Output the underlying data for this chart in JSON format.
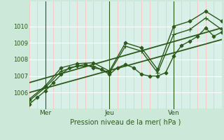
{
  "bg_color": "#cce8d8",
  "plot_bg_color": "#d8f0e8",
  "grid_color_major": "#ffffff",
  "grid_color_minor": "#ffbbbb",
  "line_color": "#2d5a1b",
  "xlabel": "Pression niveau de la mer( hPa )",
  "xlim": [
    0,
    72
  ],
  "ylim": [
    1005.0,
    1011.5
  ],
  "yticks": [
    1006,
    1007,
    1008,
    1009,
    1010
  ],
  "day_ticks": [
    6,
    30,
    54
  ],
  "day_labels": [
    "Mer",
    "Jeu",
    "Ven"
  ],
  "vline_positions": [
    6,
    30,
    54
  ],
  "series": [
    {
      "x": [
        0,
        3,
        6,
        9,
        12,
        15,
        18,
        21,
        24,
        27,
        30,
        33,
        36,
        39,
        42,
        45,
        48,
        51,
        54,
        57,
        60,
        63,
        66,
        69,
        72
      ],
      "y": [
        1005.3,
        1005.7,
        1006.1,
        1006.6,
        1007.1,
        1007.5,
        1007.6,
        1007.7,
        1007.5,
        1007.4,
        1007.1,
        1007.5,
        1007.7,
        1007.5,
        1007.1,
        1007.0,
        1007.0,
        1007.2,
        1008.2,
        1008.85,
        1009.1,
        1009.4,
        1009.9,
        1009.4,
        1009.65
      ],
      "marker": "D",
      "markersize": 2.5,
      "linewidth": 1.0
    },
    {
      "x": [
        0,
        6,
        12,
        18,
        24,
        30,
        36,
        42,
        48,
        54,
        60,
        66,
        72
      ],
      "y": [
        1005.5,
        1006.3,
        1007.3,
        1007.6,
        1007.6,
        1007.2,
        1008.8,
        1008.5,
        1007.2,
        1009.5,
        1009.8,
        1010.5,
        1009.8
      ],
      "marker": "+",
      "markersize": 4,
      "linewidth": 1.0
    },
    {
      "x": [
        0,
        6,
        12,
        18,
        24,
        30,
        36,
        42,
        48,
        54,
        60,
        66,
        72
      ],
      "y": [
        1005.6,
        1006.4,
        1007.5,
        1007.75,
        1007.8,
        1007.3,
        1009.0,
        1008.7,
        1007.4,
        1010.0,
        1010.3,
        1010.9,
        1010.3
      ],
      "marker": "D",
      "markersize": 2.5,
      "linewidth": 1.0
    },
    {
      "x": [
        0,
        72
      ],
      "y": [
        1006.0,
        1009.2
      ],
      "marker": null,
      "markersize": 0,
      "linewidth": 1.3
    },
    {
      "x": [
        0,
        72
      ],
      "y": [
        1006.6,
        1009.9
      ],
      "marker": null,
      "markersize": 0,
      "linewidth": 1.3
    }
  ]
}
